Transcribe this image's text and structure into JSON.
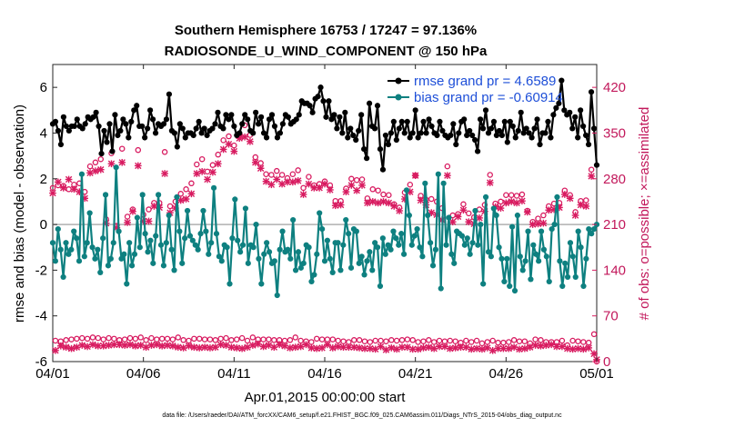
{
  "chart_data": {
    "type": "line",
    "title_line1": "Southern Hemisphere 16753 / 17247 = 97.136%",
    "title_line2": "RADIOSONDE_U_WIND_COMPONENT @ 150 hPa",
    "xlabel": "Apr.01,2015 00:00:00 start",
    "ylabel": "rmse and bias (model - observation)",
    "ylabel_right": "# of obs: o=possible; ×=assimilated",
    "footnote": "data file: /Users/raeder/DAI/ATM_forcXX/CAM6_setup/f.e21.FHIST_BGC.f09_025.CAM6assim.011/Diags_NTrS_2015-04/obs_diag_output.nc",
    "xlim": [
      0,
      30
    ],
    "ylim": [
      -6,
      7
    ],
    "ylim_right": [
      0,
      455
    ],
    "x_ticks": [
      0,
      5,
      10,
      15,
      20,
      25,
      30
    ],
    "x_tick_labels": [
      "04/01",
      "04/06",
      "04/11",
      "04/16",
      "04/21",
      "04/26",
      "05/01"
    ],
    "y_ticks": [
      -6,
      -4,
      -2,
      0,
      2,
      4,
      6
    ],
    "y_tick_labels": [
      "-6",
      "-4",
      "-2",
      "0",
      "2",
      "4",
      "6"
    ],
    "y_right_ticks": [
      0,
      70,
      140,
      210,
      280,
      350,
      420
    ],
    "y_right_tick_labels": [
      "0",
      "70",
      "140",
      "210",
      "280",
      "350",
      "420"
    ],
    "legend": {
      "location": "top-right",
      "entries": [
        "rmse grand pr = 4.6589",
        "bias grand pr = -0.60914"
      ]
    },
    "colors": {
      "rmse": "#000000",
      "bias": "#0e8080",
      "obs": "#d81b60",
      "zero_line": "#b0b0b0",
      "legend_text": "#1e4fd8"
    },
    "series": [
      {
        "name": "rmse",
        "values": [
          4.4,
          4.5,
          4.1,
          3.5,
          4.7,
          4.3,
          4.1,
          4.3,
          4.3,
          4.6,
          4.3,
          4.2,
          4.4,
          4.7,
          4.6,
          4.7,
          4.9,
          4.3,
          3.1,
          4.1,
          3.6,
          4.4,
          3.2,
          4.8,
          3.9,
          4.1,
          4.6,
          4.4,
          3.8,
          4.5,
          5.0,
          5.2,
          4.3,
          4.3,
          3.8,
          4.2,
          5.0,
          4.6,
          4.0,
          4.4,
          4.3,
          4.4,
          4.6,
          5.7,
          4.1,
          4.0,
          3.4,
          4.4,
          4.2,
          3.8,
          4.0,
          4.0,
          3.9,
          4.2,
          4.5,
          4.0,
          4.2,
          3.9,
          4.1,
          4.2,
          4.4,
          4.9,
          4.3,
          4.2,
          4.8,
          4.6,
          4.8,
          4.3,
          3.9,
          4.0,
          4.4,
          4.8,
          4.6,
          4.1,
          4.0,
          4.9,
          4.4,
          4.7,
          4.0,
          3.8,
          4.6,
          4.8,
          4.3,
          3.8,
          4.0,
          4.4,
          4.8,
          4.7,
          4.4,
          4.5,
          4.6,
          4.8,
          5.4,
          5.3,
          5.3,
          5.2,
          4.9,
          5.5,
          5.6,
          6.0,
          5.4,
          4.7,
          5.4,
          4.6,
          4.8,
          4.2,
          4.7,
          4.0,
          4.9,
          3.8,
          4.2,
          3.9,
          3.7,
          4.1,
          4.8,
          3.3,
          2.9,
          5.3,
          4.3,
          4.2,
          5.2,
          3.3,
          2.4,
          3.9,
          3.5,
          4.0,
          4.5,
          3.7,
          4.2,
          4.5,
          4.0,
          4.5,
          3.8,
          4.0,
          5.0,
          3.8,
          4.0,
          4.5,
          4.0,
          4.6,
          4.3,
          4.0,
          3.9,
          4.5,
          4.1,
          3.9,
          3.8,
          3.9,
          4.4,
          3.5,
          4.0,
          4.5,
          4.6,
          3.9,
          4.1,
          3.9,
          3.7,
          3.2,
          4.6,
          4.2,
          5.0,
          4.0,
          4.2,
          4.5,
          3.9,
          4.1,
          3.9,
          4.5,
          3.6,
          4.5,
          4.3,
          3.8,
          4.1,
          4.9,
          4.0,
          4.2,
          4.0,
          3.8,
          4.2,
          4.6,
          3.5,
          4.0,
          4.0,
          4.5,
          3.8,
          4.8,
          5.1,
          5.3,
          6.3,
          5.0,
          4.8,
          4.9,
          4.2,
          4.7,
          3.8,
          5.0,
          4.3,
          3.9,
          3.5,
          5.8,
          4.2,
          2.6
        ]
      },
      {
        "name": "bias",
        "values": [
          -0.8,
          -1.6,
          -0.2,
          -1.1,
          -2.3,
          -0.8,
          -1.3,
          -1.1,
          -0.3,
          -0.6,
          -1.6,
          2.2,
          -1.4,
          -0.8,
          0.5,
          -1.0,
          -1.5,
          -1.1,
          -2.1,
          -0.6,
          1.3,
          -1.8,
          -1.5,
          -0.8,
          2.5,
          -0.3,
          -1.5,
          -1.3,
          -2.6,
          -0.8,
          -1.8,
          -1.3,
          0.3,
          -1.0,
          1.3,
          -0.4,
          -1.2,
          -0.7,
          -1.7,
          -0.5,
          1.3,
          -0.9,
          -1.8,
          -0.8,
          0.4,
          -1.1,
          -2.0,
          1.2,
          -0.3,
          -1.7,
          -0.6,
          0.6,
          -0.5,
          -0.7,
          -0.9,
          -1.1,
          -0.4,
          0.6,
          -0.3,
          -1.3,
          -0.8,
          1.6,
          -0.4,
          -1.4,
          -1.6,
          -0.9,
          -1.0,
          -2.6,
          -0.6,
          1.1,
          -0.7,
          -1.2,
          -0.9,
          0.7,
          -1.7,
          -0.9,
          -1.0,
          0.0,
          -1.5,
          -2.6,
          -1.3,
          -0.8,
          -1.2,
          -1.7,
          -1.6,
          -3.1,
          -1.1,
          -0.3,
          -1.2,
          -1.1,
          -1.5,
          0.2,
          -2.0,
          -1.2,
          -1.9,
          -1.7,
          -0.9,
          -1.0,
          -2.5,
          -2.2,
          -1.3,
          0.5,
          -0.2,
          -1.6,
          -0.7,
          -1.5,
          -2.1,
          -0.8,
          -0.8,
          -2.0,
          -0.9,
          0.2,
          -0.4,
          -1.9,
          -0.2,
          -0.3,
          -1.7,
          -1.4,
          -2.2,
          -1.6,
          -1.2,
          -2.0,
          -0.8,
          -1.0,
          -2.7,
          -0.6,
          -1.3,
          -0.9,
          -1.1,
          -0.3,
          -0.6,
          -0.9,
          -0.4,
          -1.3,
          1.5,
          0.4,
          -0.9,
          -0.5,
          -0.2,
          -1.0,
          -1.4,
          1.8,
          0.4,
          -0.8,
          -1.8,
          -1.1,
          2.2,
          -2.8,
          1.8,
          -0.9,
          0.3,
          -1.3,
          -1.7,
          -0.3,
          -0.4,
          -0.5,
          -0.9,
          -0.6,
          -1.3,
          -0.8,
          0.6,
          -0.9,
          0.0,
          -2.6,
          1.2,
          -1.2,
          -1.4,
          0.7,
          0.4,
          -1.0,
          -1.5,
          -2.5,
          -1.5,
          -2.7,
          -0.1,
          -2.9,
          0.4,
          -1.4,
          -2.0,
          -1.6,
          -0.3,
          -2.4,
          -0.9,
          -1.3,
          -1.6,
          -0.3,
          -1.1,
          -1.4,
          -2.5,
          -0.2,
          0.0,
          1.2,
          -1.6,
          -2.7,
          -1.7,
          -2.3,
          -0.8,
          -1.4,
          -2.3,
          -0.3,
          -1.0,
          -2.7,
          -1.5,
          -0.2,
          -0.4,
          -0.2,
          0.0
        ]
      },
      {
        "name": "obs possible (o)",
        "values": [
          266,
          32,
          270,
          31,
          269,
          33,
          264,
          34,
          271,
          35,
          273,
          36,
          260,
          35,
          299,
          37,
          305,
          36,
          310,
          34,
          218,
          36,
          319,
          35,
          208,
          33,
          326,
          34,
          222,
          36,
          233,
          35,
          324,
          37,
          225,
          33,
          233,
          36,
          243,
          34,
          243,
          35,
          321,
          35,
          238,
          34,
          245,
          37,
          257,
          33,
          264,
          32,
          273,
          35,
          302,
          35,
          310,
          34,
          291,
          34,
          301,
          33,
          317,
          35,
          339,
          36,
          345,
          33,
          331,
          34,
          349,
          36,
          362,
          32,
          347,
          37,
          313,
          34,
          304,
          34,
          287,
          34,
          286,
          33,
          292,
          33,
          286,
          32,
          281,
          33,
          287,
          37,
          293,
          32,
          266,
          31,
          283,
          30,
          270,
          35,
          272,
          34,
          276,
          34,
          270,
          34,
          246,
          32,
          246,
          31,
          265,
          30,
          280,
          33,
          278,
          33,
          279,
          31,
          250,
          30,
          264,
          32,
          262,
          32,
          256,
          31,
          255,
          33,
          241,
          32,
          236,
          33,
          259,
          34,
          271,
          33,
          285,
          30,
          254,
          31,
          248,
          33,
          249,
          30,
          245,
          32,
          235,
          31,
          299,
          32,
          224,
          31,
          226,
          29,
          241,
          32,
          227,
          30,
          221,
          32,
          233,
          28,
          240,
          30,
          286,
          32,
          242,
          29,
          245,
          29,
          255,
          30,
          255,
          33,
          254,
          31,
          256,
          31,
          231,
          28,
          214,
          34,
          219,
          33,
          224,
          30,
          238,
          30,
          242,
          30,
          243,
          32,
          262,
          25,
          255,
          32,
          229,
          31,
          246,
          30,
          247,
          29,
          294,
          42,
          0
        ]
      },
      {
        "name": "obs assimilated (x)",
        "values": [
          258,
          17,
          275,
          24,
          266,
          22,
          279,
          20,
          264,
          22,
          260,
          25,
          250,
          23,
          289,
          26,
          292,
          24,
          294,
          24,
          212,
          25,
          303,
          26,
          205,
          26,
          305,
          25,
          213,
          26,
          230,
          24,
          300,
          25,
          215,
          22,
          215,
          25,
          238,
          26,
          236,
          24,
          288,
          25,
          228,
          24,
          235,
          22,
          247,
          21,
          249,
          24,
          257,
          22,
          288,
          21,
          291,
          22,
          279,
          21,
          290,
          22,
          303,
          26,
          325,
          25,
          333,
          22,
          322,
          21,
          342,
          20,
          344,
          22,
          337,
          25,
          305,
          27,
          296,
          23,
          276,
          25,
          271,
          22,
          279,
          26,
          272,
          24,
          275,
          21,
          275,
          22,
          277,
          23,
          256,
          26,
          272,
          21,
          266,
          20,
          266,
          21,
          272,
          26,
          263,
          21,
          239,
          23,
          240,
          22,
          260,
          22,
          270,
          22,
          262,
          21,
          270,
          20,
          243,
          20,
          245,
          19,
          243,
          23,
          245,
          18,
          243,
          21,
          238,
          19,
          231,
          22,
          249,
          22,
          260,
          19,
          285,
          19,
          247,
          21,
          240,
          22,
          228,
          20,
          225,
          23,
          217,
          23,
          285,
          20,
          214,
          21,
          222,
          22,
          232,
          22,
          214,
          19,
          211,
          20,
          220,
          19,
          230,
          21,
          274,
          17,
          237,
          20,
          235,
          20,
          243,
          20,
          245,
          22,
          243,
          19,
          246,
          20,
          229,
          22,
          210,
          25,
          211,
          24,
          212,
          25,
          232,
          26,
          233,
          23,
          236,
          23,
          256,
          20,
          250,
          19,
          224,
          20,
          240,
          19,
          238,
          21,
          284,
          12,
          3
        ]
      }
    ]
  }
}
